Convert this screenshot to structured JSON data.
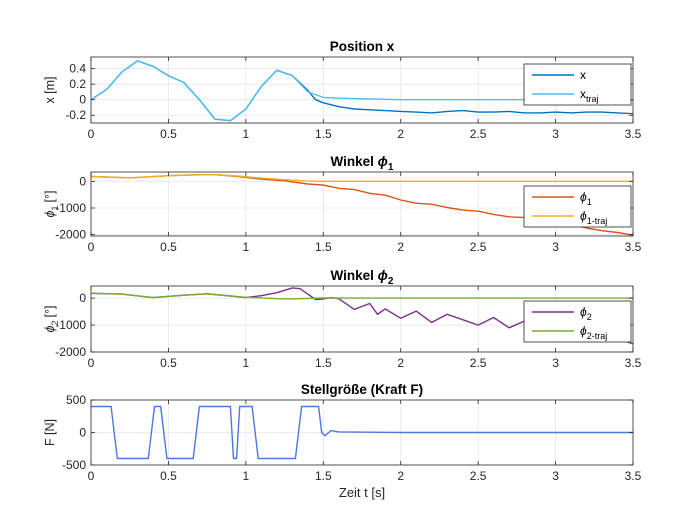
{
  "chart_data": [
    {
      "type": "line",
      "title": "Position x",
      "ylabel": "x [m]",
      "xlabel": "",
      "xlim": [
        0,
        3.5
      ],
      "ylim": [
        -0.3,
        0.55
      ],
      "xticks": [
        0,
        0.5,
        1,
        1.5,
        2,
        2.5,
        3,
        3.5
      ],
      "xtick_labels": [
        "0",
        "0.5",
        "1",
        "1.5",
        "2",
        "2.5",
        "3",
        "3.5"
      ],
      "yticks": [
        -0.2,
        0,
        0.2,
        0.4
      ],
      "ytick_labels": [
        "-0.2",
        "0",
        "0.2",
        "0.4"
      ],
      "grid": true,
      "legend_position": "top-right",
      "series": [
        {
          "name": "x",
          "legend_main": "x",
          "legend_sub": "",
          "color": "#0072BD",
          "x": [
            0,
            0.1,
            0.2,
            0.3,
            0.4,
            0.5,
            0.6,
            0.7,
            0.8,
            0.9,
            1.0,
            1.1,
            1.2,
            1.3,
            1.4,
            1.45,
            1.5,
            1.6,
            1.7,
            1.8,
            1.9,
            2.0,
            2.1,
            2.2,
            2.3,
            2.4,
            2.5,
            2.6,
            2.7,
            2.8,
            2.9,
            3.0,
            3.1,
            3.2,
            3.3,
            3.4,
            3.5
          ],
          "y": [
            0.0,
            0.13,
            0.36,
            0.5,
            0.43,
            0.31,
            0.22,
            0.0,
            -0.25,
            -0.27,
            -0.12,
            0.17,
            0.38,
            0.31,
            0.12,
            0.0,
            -0.04,
            -0.09,
            -0.12,
            -0.13,
            -0.14,
            -0.15,
            -0.16,
            -0.17,
            -0.15,
            -0.14,
            -0.16,
            -0.16,
            -0.15,
            -0.17,
            -0.17,
            -0.16,
            -0.17,
            -0.16,
            -0.16,
            -0.17,
            -0.18
          ]
        },
        {
          "name": "x_traj",
          "legend_main": "x",
          "legend_sub": "traj",
          "color": "#4DBEEE",
          "x": [
            0,
            0.1,
            0.2,
            0.3,
            0.4,
            0.5,
            0.6,
            0.7,
            0.8,
            0.9,
            1.0,
            1.1,
            1.2,
            1.3,
            1.4,
            1.5,
            1.6,
            1.8,
            2.0,
            2.5,
            3.0,
            3.5
          ],
          "y": [
            0.0,
            0.13,
            0.36,
            0.5,
            0.43,
            0.31,
            0.22,
            0.0,
            -0.25,
            -0.27,
            -0.12,
            0.17,
            0.38,
            0.31,
            0.1,
            0.03,
            0.02,
            0.01,
            0.0,
            0.0,
            0.0,
            0.0
          ]
        }
      ]
    },
    {
      "type": "line",
      "title": "Winkel ",
      "title_symbol": "ϕ",
      "title_sub": "1",
      "ylabel": "[°]",
      "ylabel_symbol": "ϕ",
      "ylabel_sub": "1",
      "xlabel": "",
      "xlim": [
        0,
        3.5
      ],
      "ylim": [
        -2050,
        350
      ],
      "xticks": [
        0,
        0.5,
        1,
        1.5,
        2,
        2.5,
        3,
        3.5
      ],
      "xtick_labels": [
        "0",
        "0.5",
        "1",
        "1.5",
        "2",
        "2.5",
        "3",
        "3.5"
      ],
      "yticks": [
        -2000,
        -1000,
        0
      ],
      "ytick_labels": [
        "-2000",
        "-1000",
        "0"
      ],
      "grid": true,
      "legend_position": "right",
      "series": [
        {
          "name": "phi_1",
          "legend_main": "ϕ",
          "legend_sub": "1",
          "color": "#D95319",
          "x": [
            0,
            0.25,
            0.5,
            0.65,
            0.8,
            0.95,
            1.1,
            1.25,
            1.4,
            1.5,
            1.6,
            1.7,
            1.8,
            1.9,
            2.0,
            2.1,
            2.2,
            2.3,
            2.4,
            2.5,
            2.6,
            2.7,
            2.8,
            2.9,
            3.0,
            3.1,
            3.2,
            3.3,
            3.4,
            3.5
          ],
          "y": [
            180,
            130,
            210,
            240,
            250,
            180,
            80,
            20,
            -100,
            -140,
            -260,
            -310,
            -450,
            -520,
            -700,
            -820,
            -860,
            -980,
            -1080,
            -1120,
            -1240,
            -1330,
            -1360,
            -1480,
            -1560,
            -1620,
            -1750,
            -1850,
            -1920,
            -2020
          ]
        },
        {
          "name": "phi_1_traj",
          "legend_main": "ϕ",
          "legend_sub": "1-traj",
          "color": "#EDB120",
          "x": [
            0,
            0.25,
            0.5,
            0.65,
            0.8,
            0.95,
            1.1,
            1.25,
            1.4,
            1.5,
            2.0,
            2.5,
            3.0,
            3.5
          ],
          "y": [
            180,
            130,
            210,
            240,
            250,
            200,
            120,
            60,
            10,
            0,
            0,
            0,
            0,
            0
          ]
        }
      ]
    },
    {
      "type": "line",
      "title": "Winkel ",
      "title_symbol": "ϕ",
      "title_sub": "2",
      "ylabel": "[°]",
      "ylabel_symbol": "ϕ",
      "ylabel_sub": "2",
      "xlabel": "",
      "xlim": [
        0,
        3.5
      ],
      "ylim": [
        -2000,
        450
      ],
      "xticks": [
        0,
        0.5,
        1,
        1.5,
        2,
        2.5,
        3,
        3.5
      ],
      "xtick_labels": [
        "0",
        "0.5",
        "1",
        "1.5",
        "2",
        "2.5",
        "3",
        "3.5"
      ],
      "yticks": [
        -2000,
        -1000,
        0
      ],
      "ytick_labels": [
        "-2000",
        "-1000",
        "0"
      ],
      "grid": true,
      "legend_position": "right",
      "series": [
        {
          "name": "phi_2",
          "legend_main": "ϕ",
          "legend_sub": "2",
          "color": "#7E2F8E",
          "x": [
            0,
            0.2,
            0.4,
            0.6,
            0.75,
            0.9,
            1.0,
            1.1,
            1.2,
            1.3,
            1.35,
            1.4,
            1.45,
            1.5,
            1.55,
            1.6,
            1.7,
            1.8,
            1.85,
            1.9,
            2.0,
            2.1,
            2.2,
            2.3,
            2.4,
            2.5,
            2.6,
            2.7,
            2.8,
            2.9,
            3.0,
            3.1,
            3.2,
            3.3,
            3.4,
            3.5
          ],
          "y": [
            180,
            150,
            20,
            110,
            160,
            80,
            20,
            90,
            200,
            380,
            350,
            150,
            -50,
            -30,
            20,
            -20,
            -420,
            -200,
            -600,
            -400,
            -750,
            -480,
            -900,
            -600,
            -800,
            -1000,
            -720,
            -1100,
            -850,
            -1150,
            -1200,
            -1050,
            -1280,
            -1350,
            -1500,
            -1700
          ]
        },
        {
          "name": "phi_2_traj",
          "legend_main": "ϕ",
          "legend_sub": "2-traj",
          "color": "#77AC30",
          "x": [
            0,
            0.2,
            0.4,
            0.6,
            0.75,
            0.9,
            1.0,
            1.1,
            1.2,
            1.3,
            1.4,
            1.5,
            1.6,
            2.0,
            2.5,
            3.0,
            3.5
          ],
          "y": [
            180,
            150,
            20,
            110,
            160,
            80,
            30,
            10,
            -20,
            -30,
            -10,
            10,
            0,
            0,
            0,
            0,
            0
          ]
        }
      ]
    },
    {
      "type": "line",
      "title": "Stellgröße (Kraft F)",
      "ylabel": "F [N]",
      "xlabel": "Zeit t [s]",
      "xlim": [
        0,
        3.5
      ],
      "ylim": [
        -500,
        500
      ],
      "xticks": [
        0,
        0.5,
        1,
        1.5,
        2,
        2.5,
        3,
        3.5
      ],
      "xtick_labels": [
        "0",
        "0.5",
        "1",
        "1.5",
        "2",
        "2.5",
        "3",
        "3.5"
      ],
      "yticks": [
        -500,
        0,
        500
      ],
      "ytick_labels": [
        "-500",
        "0",
        "500"
      ],
      "grid": true,
      "series": [
        {
          "name": "F",
          "color": "#4A78E0",
          "x": [
            0,
            0.13,
            0.17,
            0.37,
            0.41,
            0.45,
            0.49,
            0.53,
            0.66,
            0.7,
            0.9,
            0.92,
            0.94,
            0.96,
            1.04,
            1.08,
            1.32,
            1.36,
            1.47,
            1.49,
            1.51,
            1.55,
            1.6,
            2.0,
            2.5,
            3.0,
            3.5
          ],
          "y": [
            400,
            400,
            -400,
            -400,
            400,
            400,
            -400,
            -400,
            -400,
            400,
            400,
            -400,
            -400,
            400,
            400,
            -400,
            -400,
            400,
            400,
            0,
            -50,
            30,
            10,
            0,
            0,
            0,
            0
          ]
        }
      ]
    }
  ]
}
